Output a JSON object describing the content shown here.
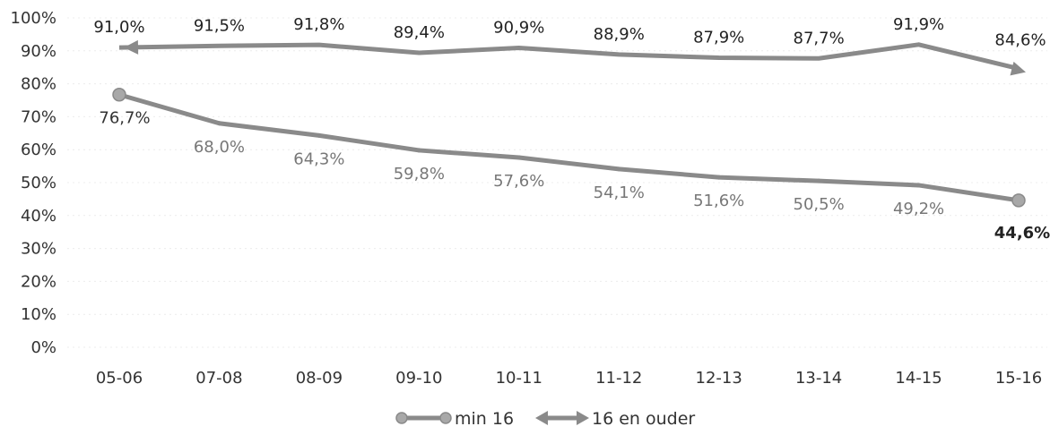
{
  "chart_data": {
    "type": "line",
    "categories": [
      "05-06",
      "07-08",
      "08-09",
      "09-10",
      "10-11",
      "11-12",
      "12-13",
      "13-14",
      "14-15",
      "15-16"
    ],
    "y_ticks": [
      "0%",
      "10%",
      "20%",
      "30%",
      "40%",
      "50%",
      "60%",
      "70%",
      "80%",
      "90%",
      "100%"
    ],
    "ylim": [
      0,
      100
    ],
    "series": [
      {
        "name": "min 16",
        "values": [
          76.7,
          68.0,
          64.3,
          59.8,
          57.6,
          54.1,
          51.6,
          50.5,
          49.2,
          44.6
        ],
        "labels": [
          "76,7%",
          "68,0%",
          "64,3%",
          "59,8%",
          "57,6%",
          "54,1%",
          "51,6%",
          "50,5%",
          "49,2%",
          "44,6%"
        ],
        "color": "#8a8a8a",
        "marker": "circle"
      },
      {
        "name": "16 en ouder",
        "values": [
          91.0,
          91.5,
          91.8,
          89.4,
          90.9,
          88.9,
          87.9,
          87.7,
          91.9,
          84.6
        ],
        "labels": [
          "91,0%",
          "91,5%",
          "91,8%",
          "89,4%",
          "90,9%",
          "88,9%",
          "87,9%",
          "87,7%",
          "91,9%",
          "84,6%"
        ],
        "color": "#8a8a8a",
        "marker": "arrow"
      }
    ],
    "legend_position": "bottom",
    "grid": true
  }
}
